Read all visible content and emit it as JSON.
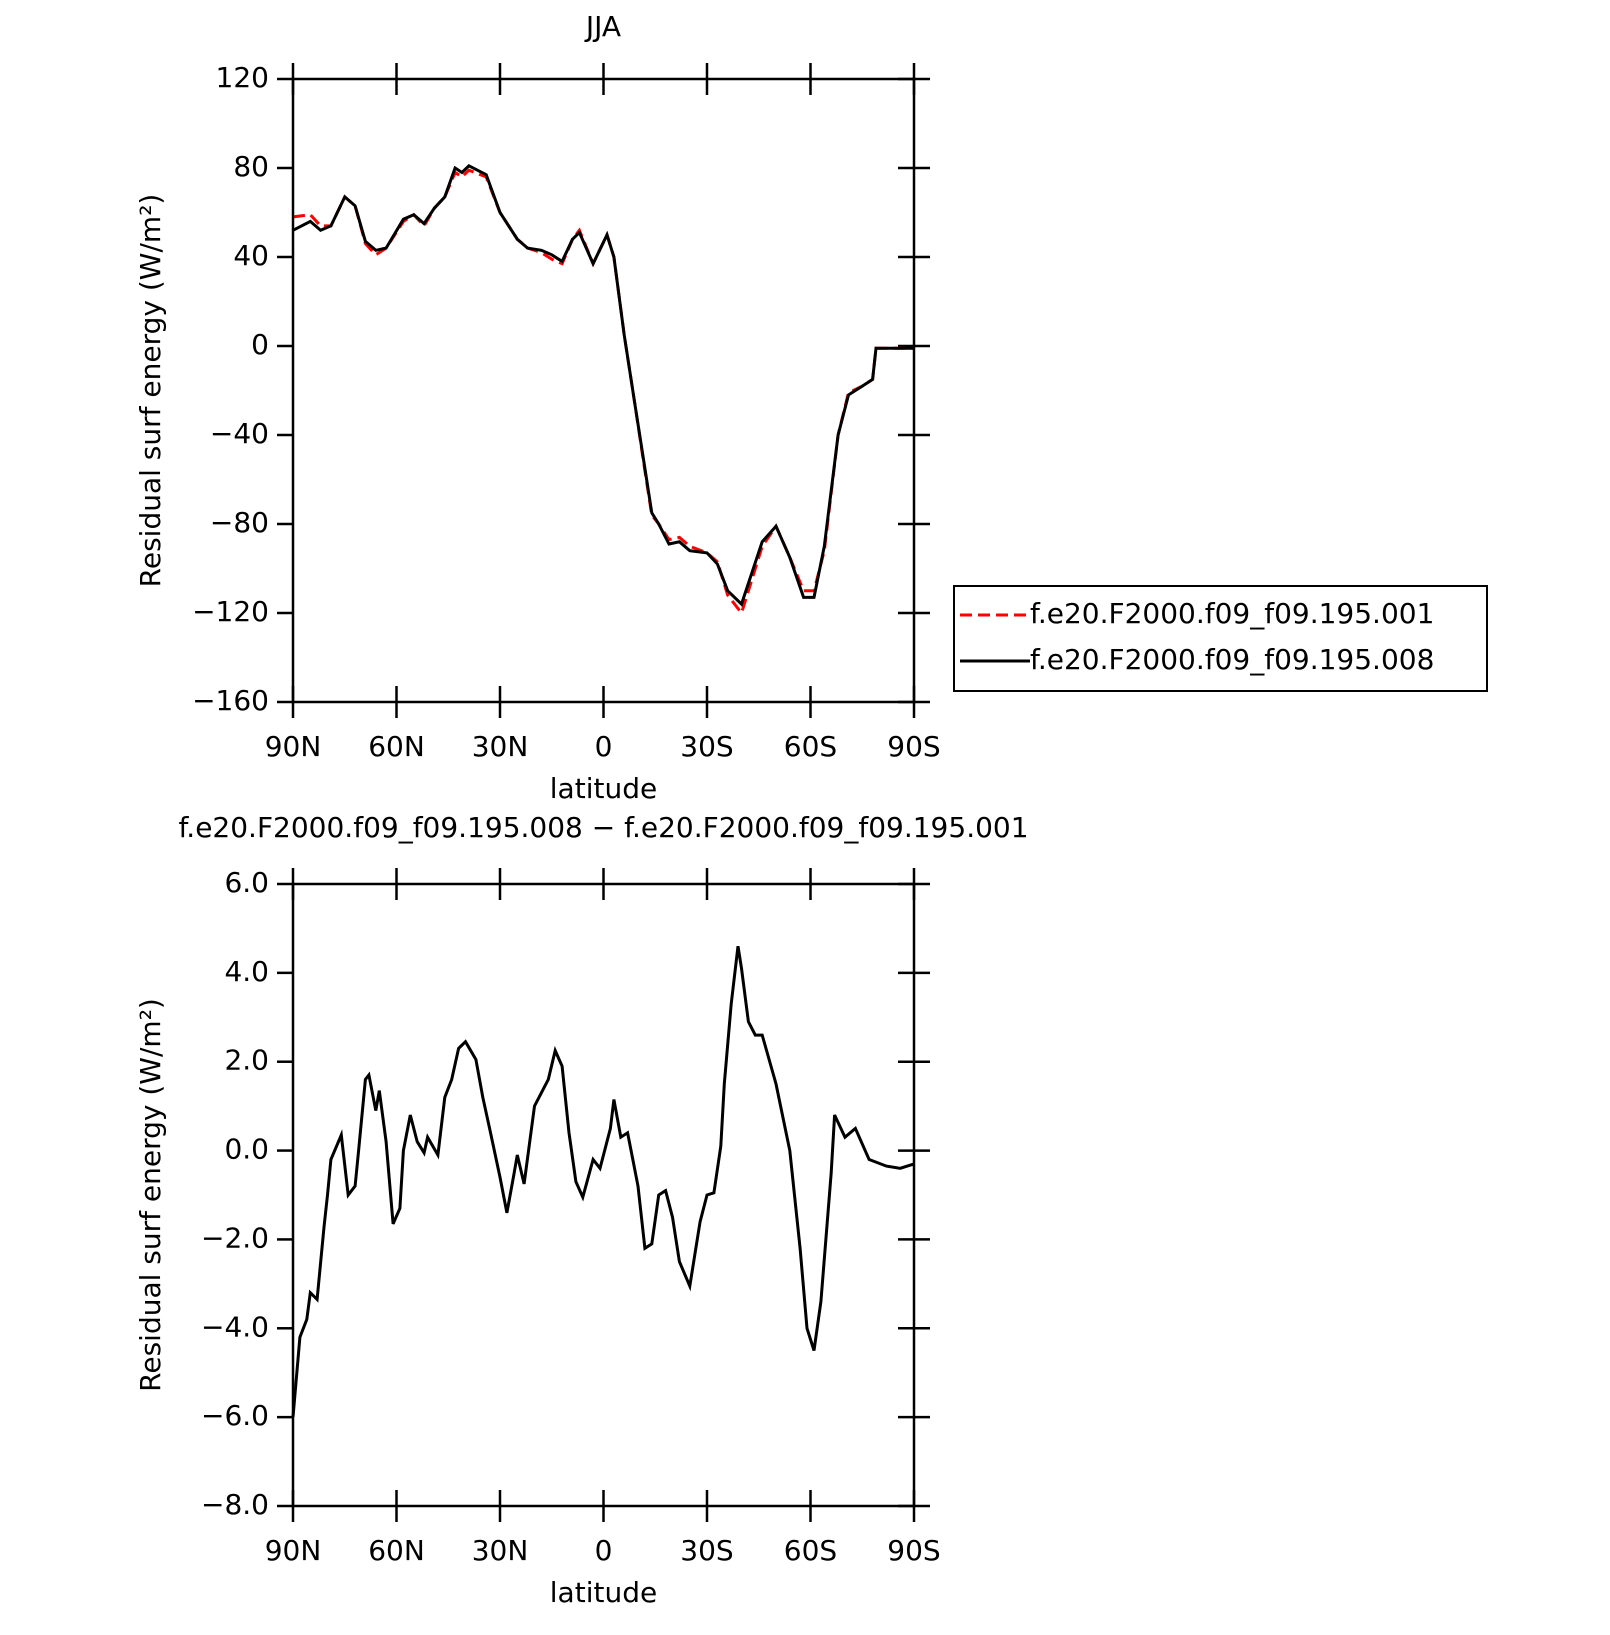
{
  "chart_data": [
    {
      "type": "line",
      "title": "JJA",
      "xlabel": "latitude",
      "ylabel": "Residual surf energy (W/m²)",
      "xlim": [
        90,
        -90
      ],
      "xticks": [
        {
          "value": 90,
          "label": "90N"
        },
        {
          "value": 60,
          "label": "60N"
        },
        {
          "value": 30,
          "label": "30N"
        },
        0,
        {
          "value": -30,
          "label": "30S"
        },
        {
          "value": -60,
          "label": "60S"
        },
        {
          "value": -90,
          "label": "90S"
        }
      ],
      "ylim": [
        -160,
        120
      ],
      "yticks": [
        {
          "value": -160,
          "label": "−160"
        },
        {
          "value": -120,
          "label": "−120"
        },
        {
          "value": -80,
          "label": "−80"
        },
        {
          "value": -40,
          "label": "−40"
        },
        0,
        40,
        80,
        120
      ],
      "legend": "right",
      "x": [
        90,
        85,
        82,
        79,
        75,
        72,
        69,
        66,
        63,
        58,
        55,
        52,
        49,
        46,
        43,
        41,
        39,
        34,
        30,
        25,
        22,
        18,
        15,
        12,
        9,
        7,
        3,
        -1,
        -3,
        -6,
        -9,
        -12,
        -14,
        -16,
        -19,
        -22,
        -25,
        -30,
        -33,
        -36,
        -40,
        -46,
        -50,
        -54,
        -58,
        -61,
        -64,
        -68,
        -71,
        -75,
        -78,
        -79,
        -90
      ],
      "series": [
        {
          "name": "f.e20.F2000.f09_f09.195.001",
          "color": "#ff0000",
          "dash": true,
          "values": [
            58,
            59,
            54,
            54,
            67,
            63,
            46,
            41,
            44,
            56,
            59,
            54,
            62,
            67,
            78,
            76,
            79,
            76,
            60,
            48,
            44,
            42,
            39,
            37,
            48,
            52,
            37,
            50,
            40,
            5,
            -25,
            -56,
            -76,
            -80,
            -87,
            -86,
            -90,
            -93,
            -97,
            -112,
            -120,
            -90,
            -81,
            -95,
            -110,
            -110,
            -92,
            -40,
            -21,
            -18,
            -15,
            -1,
            -1
          ]
        },
        {
          "name": "f.e20.F2000.f09_f09.195.008",
          "color": "#000000",
          "dash": false,
          "values": [
            52,
            56,
            52,
            54,
            67,
            63,
            47,
            43,
            44,
            57,
            59,
            55,
            62,
            67,
            80,
            78,
            81,
            77,
            60,
            48,
            44,
            43,
            41,
            38,
            48,
            51,
            37,
            50,
            40,
            5,
            -25,
            -55,
            -75,
            -80,
            -89,
            -88,
            -92,
            -93,
            -98,
            -110,
            -116,
            -88,
            -81,
            -95,
            -113,
            -113,
            -90,
            -40,
            -22,
            -18,
            -15,
            -1,
            -1
          ]
        }
      ]
    },
    {
      "type": "line",
      "title": "f.e20.F2000.f09_f09.195.008 − f.e20.F2000.f09_f09.195.001",
      "xlabel": "latitude",
      "ylabel": "Residual surf energy (W/m²)",
      "xlim": [
        90,
        -90
      ],
      "xticks": [
        {
          "value": 90,
          "label": "90N"
        },
        {
          "value": 60,
          "label": "60N"
        },
        {
          "value": 30,
          "label": "30N"
        },
        0,
        {
          "value": -30,
          "label": "30S"
        },
        {
          "value": -60,
          "label": "60S"
        },
        {
          "value": -90,
          "label": "90S"
        }
      ],
      "ylim": [
        -8,
        6
      ],
      "yticks": [
        {
          "value": -8,
          "label": "−8.0"
        },
        {
          "value": -6,
          "label": "−6.0"
        },
        {
          "value": -4,
          "label": "−4.0"
        },
        {
          "value": -2,
          "label": "−2.0"
        },
        {
          "value": 0,
          "label": "0.0"
        },
        {
          "value": 2,
          "label": "2.0"
        },
        {
          "value": 4,
          "label": "4.0"
        },
        {
          "value": 6,
          "label": "6.0"
        }
      ],
      "x": [
        90,
        88,
        86,
        85,
        83,
        81,
        80,
        79,
        76,
        74,
        72,
        71,
        69,
        68,
        66,
        65,
        63,
        61,
        59,
        58,
        56,
        54,
        52,
        51,
        48,
        46,
        44,
        42,
        40,
        37,
        35,
        33,
        30,
        28,
        26,
        25,
        23,
        20,
        16,
        14,
        12,
        10,
        8,
        6,
        3,
        1,
        0,
        -2,
        -3,
        -5,
        -7,
        -10,
        -12,
        -14,
        -16,
        -18,
        -20,
        -22,
        -25,
        -28,
        -30,
        -32,
        -34,
        -35,
        -37,
        -39,
        -40,
        -42,
        -44,
        -46,
        -50,
        -54,
        -57,
        -59,
        -61,
        -63,
        -66,
        -67,
        -70,
        -73,
        -77,
        -82,
        -86,
        -90
      ],
      "series": [
        {
          "name": "f.e20.F2000.f09_f09.195.008 − f.e20.F2000.f09_f09.195.001",
          "color": "#000000",
          "dash": false,
          "values": [
            -6,
            -4.2,
            -3.8,
            -3.2,
            -3.35,
            -1.7,
            -1,
            -0.2,
            0.35,
            -1,
            -0.8,
            0,
            1.6,
            1.7,
            0.9,
            1.35,
            0.2,
            -1.65,
            -1.3,
            0,
            0.8,
            0.2,
            -0.05,
            0.3,
            -0.1,
            1.2,
            1.6,
            2.3,
            2.45,
            2.05,
            1.2,
            0.5,
            -0.6,
            -1.4,
            -0.55,
            -0.1,
            -0.75,
            1,
            1.6,
            2.25,
            1.9,
            0.4,
            -0.7,
            -1.05,
            -0.2,
            -0.4,
            -0.1,
            0.5,
            1.15,
            0.3,
            0.4,
            -0.8,
            -2.2,
            -2.1,
            -1,
            -0.9,
            -1.5,
            -2.5,
            -3.05,
            -1.6,
            -1,
            -0.95,
            0.1,
            1.5,
            3.3,
            4.6,
            4.1,
            2.9,
            2.6,
            2.6,
            1.5,
            0,
            -2.2,
            -4,
            -4.5,
            -3.4,
            -0.5,
            0.8,
            0.3,
            0.5,
            -0.2,
            -0.35,
            -0.4,
            -0.3
          ]
        }
      ]
    }
  ]
}
